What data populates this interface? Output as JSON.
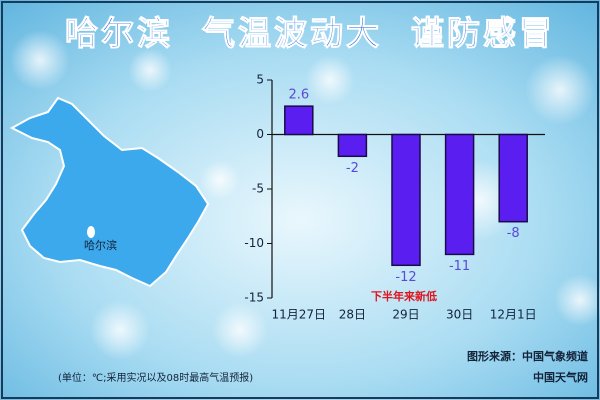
{
  "chart_data": {
    "type": "bar",
    "title": "哈尔滨  气温波动大  谨防感冒",
    "map_label": "哈尔滨",
    "categories": [
      "11月27日",
      "28日",
      "29日",
      "30日",
      "12月1日"
    ],
    "values": [
      2.6,
      -2,
      -12,
      -11,
      -8
    ],
    "color": "#5a1ff0",
    "ylim": [
      -15,
      5
    ],
    "yticks": [
      5,
      0,
      -5,
      -10,
      -15
    ],
    "annotation": "下半年来新低",
    "source": "图形来源：中国气象频道",
    "site": "中国天气网",
    "note": "(单位：℃;采用实况以及08时最高气温预报)"
  }
}
